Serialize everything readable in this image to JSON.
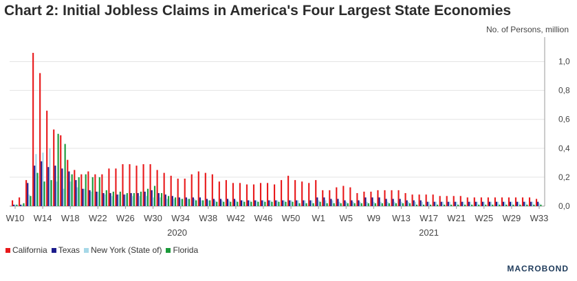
{
  "header": {
    "title": "Chart 2: Initial Jobless Claims in America's Four Largest State Economies"
  },
  "brand": {
    "logo_text": "MACROBOND"
  },
  "chart_data": {
    "type": "bar",
    "ylabel": "No. of Persons, million",
    "ylim": [
      0,
      1.15
    ],
    "yticks": [
      "0,0",
      "0,2",
      "0,4",
      "0,6",
      "0,8",
      "1,0"
    ],
    "ytick_values": [
      0,
      0.2,
      0.4,
      0.6,
      0.8,
      1.0
    ],
    "xtick_labels": [
      "W10",
      "W14",
      "W18",
      "W22",
      "W26",
      "W30",
      "W34",
      "W38",
      "W42",
      "W46",
      "W50",
      "W1",
      "W5",
      "W9",
      "W13",
      "W17",
      "W21",
      "W25",
      "W29",
      "W33"
    ],
    "year_labels": [
      "2020",
      "2021"
    ],
    "grid": true,
    "legend_position": "bottom-left",
    "categories": [
      "W10",
      "W11",
      "W12",
      "W13",
      "W14",
      "W15",
      "W16",
      "W17",
      "W18",
      "W19",
      "W20",
      "W21",
      "W22",
      "W23",
      "W24",
      "W25",
      "W26",
      "W27",
      "W28",
      "W29",
      "W30",
      "W31",
      "W32",
      "W33",
      "W34",
      "W35",
      "W36",
      "W37",
      "W38",
      "W39",
      "W40",
      "W41",
      "W42",
      "W43",
      "W44",
      "W45",
      "W46",
      "W47",
      "W48",
      "W49",
      "W50",
      "W51",
      "W52",
      "W53",
      "W1",
      "W2",
      "W3",
      "W4",
      "W5",
      "W6",
      "W7",
      "W8",
      "W9",
      "W10",
      "W11",
      "W12",
      "W13",
      "W14",
      "W15",
      "W16",
      "W17",
      "W18",
      "W19",
      "W20",
      "W21",
      "W22",
      "W23",
      "W24",
      "W25",
      "W26",
      "W27",
      "W28",
      "W29",
      "W30",
      "W31",
      "W32",
      "W33"
    ],
    "series": [
      {
        "name": "California",
        "color": "#e8191b",
        "values": [
          0.04,
          0.06,
          0.18,
          1.06,
          0.92,
          0.66,
          0.53,
          0.49,
          0.32,
          0.25,
          0.22,
          0.24,
          0.22,
          0.22,
          0.26,
          0.26,
          0.29,
          0.29,
          0.28,
          0.29,
          0.29,
          0.25,
          0.23,
          0.21,
          0.19,
          0.19,
          0.22,
          0.24,
          0.23,
          0.22,
          0.17,
          0.18,
          0.16,
          0.16,
          0.15,
          0.15,
          0.16,
          0.16,
          0.15,
          0.18,
          0.21,
          0.18,
          0.17,
          0.16,
          0.18,
          0.11,
          0.11,
          0.13,
          0.14,
          0.13,
          0.09,
          0.1,
          0.1,
          0.11,
          0.11,
          0.11,
          0.11,
          0.09,
          0.08,
          0.08,
          0.08,
          0.08,
          0.07,
          0.07,
          0.07,
          0.07,
          0.06,
          0.06,
          0.06,
          0.06,
          0.06,
          0.06,
          0.06,
          0.06,
          0.06,
          0.06,
          0.05
        ]
      },
      {
        "name": "Texas",
        "color": "#1c1c8c",
        "values": [
          0.01,
          0.01,
          0.16,
          0.28,
          0.31,
          0.27,
          0.28,
          0.26,
          0.24,
          0.18,
          0.12,
          0.11,
          0.1,
          0.09,
          0.09,
          0.08,
          0.08,
          0.09,
          0.09,
          0.1,
          0.11,
          0.09,
          0.08,
          0.07,
          0.06,
          0.06,
          0.06,
          0.06,
          0.05,
          0.05,
          0.05,
          0.05,
          0.05,
          0.04,
          0.04,
          0.04,
          0.04,
          0.04,
          0.04,
          0.04,
          0.04,
          0.04,
          0.04,
          0.04,
          0.06,
          0.06,
          0.05,
          0.05,
          0.04,
          0.04,
          0.04,
          0.06,
          0.06,
          0.06,
          0.05,
          0.05,
          0.05,
          0.04,
          0.04,
          0.04,
          0.03,
          0.03,
          0.03,
          0.03,
          0.03,
          0.03,
          0.03,
          0.03,
          0.03,
          0.03,
          0.03,
          0.03,
          0.03,
          0.03,
          0.03,
          0.03,
          0.03
        ]
      },
      {
        "name": "New York (State of)",
        "color": "#a6d8e8",
        "values": [
          0.01,
          0.01,
          0.08,
          0.36,
          0.37,
          0.4,
          0.17,
          0.12,
          0.17,
          0.13,
          0.12,
          0.1,
          0.1,
          0.08,
          0.07,
          0.08,
          0.08,
          0.07,
          0.07,
          0.07,
          0.06,
          0.06,
          0.05,
          0.05,
          0.05,
          0.05,
          0.05,
          0.04,
          0.04,
          0.04,
          0.04,
          0.04,
          0.04,
          0.04,
          0.04,
          0.04,
          0.04,
          0.04,
          0.04,
          0.04,
          0.04,
          0.04,
          0.04,
          0.04,
          0.04,
          0.04,
          0.04,
          0.03,
          0.03,
          0.03,
          0.03,
          0.03,
          0.03,
          0.03,
          0.03,
          0.03,
          0.03,
          0.03,
          0.03,
          0.03,
          0.03,
          0.03,
          0.03,
          0.03,
          0.03,
          0.03,
          0.03,
          0.03,
          0.03,
          0.03,
          0.03,
          0.03,
          0.03,
          0.03,
          0.03,
          0.03,
          0.02
        ]
      },
      {
        "name": "Florida",
        "color": "#1b9a3a",
        "values": [
          0.01,
          0.02,
          0.07,
          0.23,
          0.17,
          0.18,
          0.5,
          0.43,
          0.22,
          0.2,
          0.22,
          0.2,
          0.2,
          0.11,
          0.1,
          0.1,
          0.09,
          0.09,
          0.1,
          0.12,
          0.14,
          0.09,
          0.07,
          0.06,
          0.05,
          0.05,
          0.04,
          0.04,
          0.04,
          0.03,
          0.03,
          0.03,
          0.03,
          0.03,
          0.03,
          0.03,
          0.03,
          0.03,
          0.03,
          0.03,
          0.03,
          0.02,
          0.02,
          0.02,
          0.03,
          0.02,
          0.02,
          0.02,
          0.02,
          0.02,
          0.02,
          0.02,
          0.02,
          0.02,
          0.02,
          0.02,
          0.02,
          0.02,
          0.01,
          0.01,
          0.01,
          0.01,
          0.01,
          0.01,
          0.01,
          0.01,
          0.01,
          0.01,
          0.01,
          0.01,
          0.01,
          0.01,
          0.01,
          0.01,
          0.01,
          0.01,
          0.01
        ]
      }
    ]
  }
}
